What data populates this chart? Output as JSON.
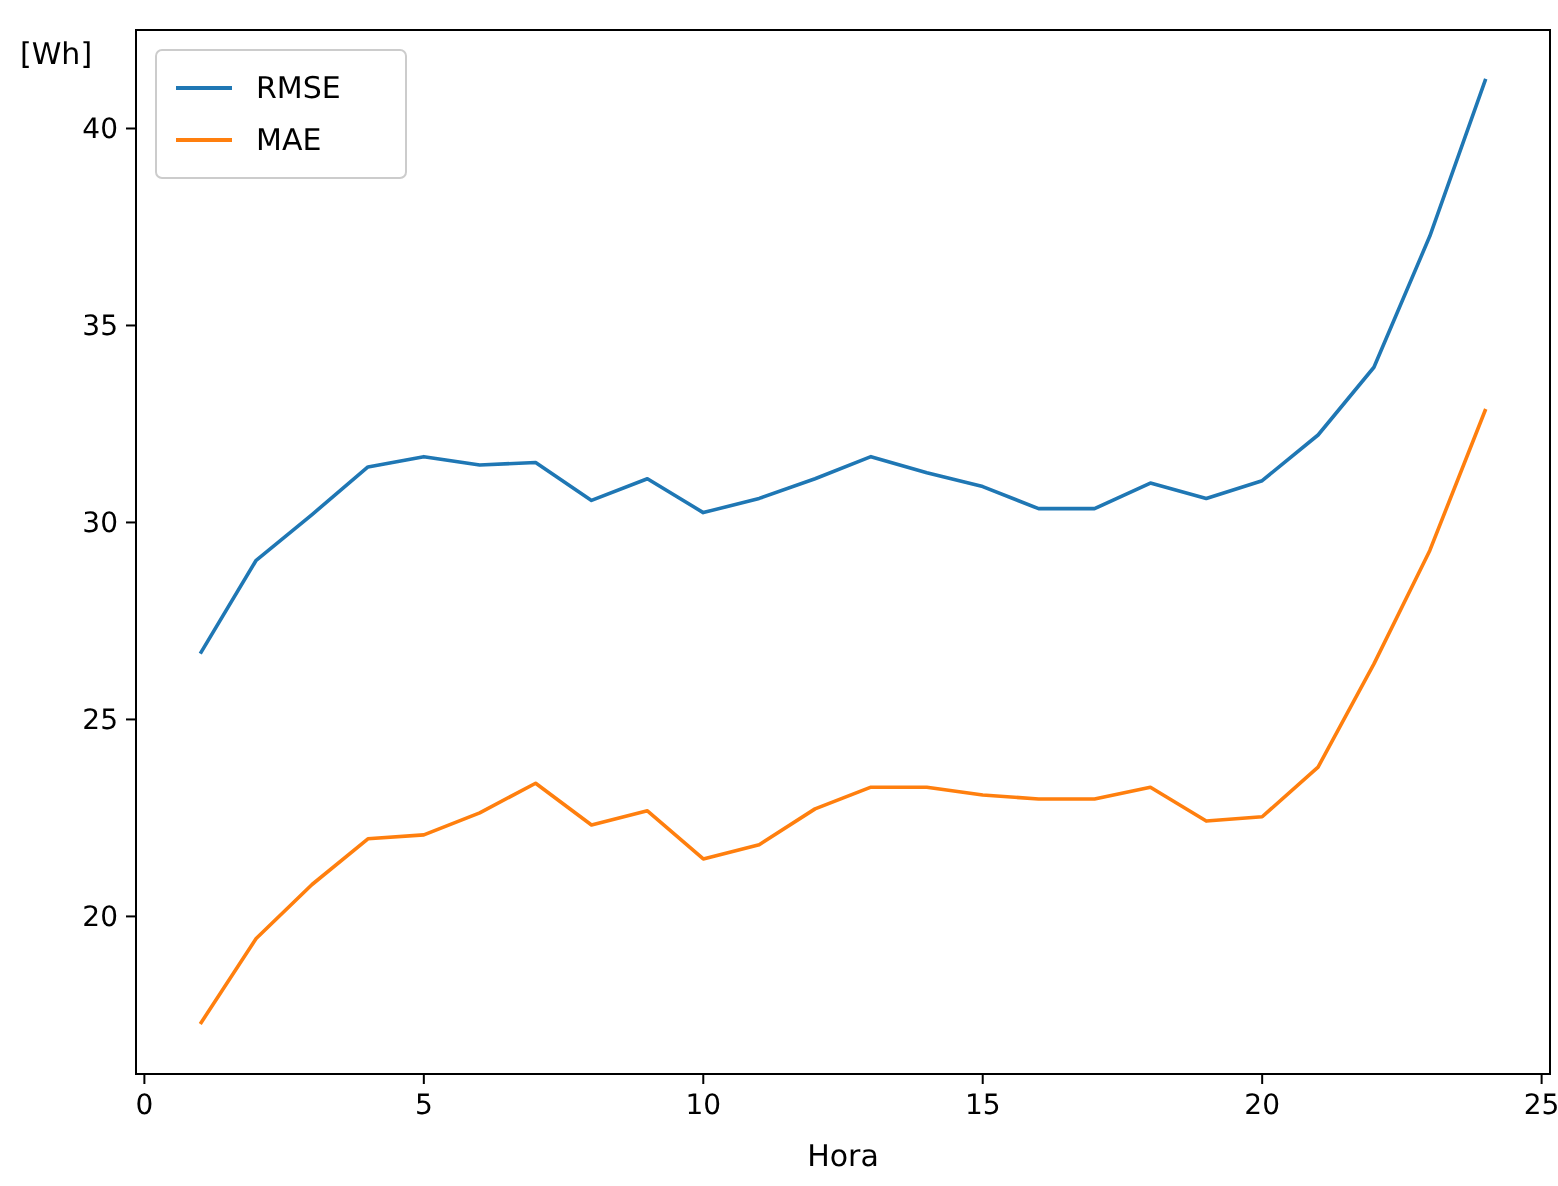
{
  "chart_data": {
    "type": "line",
    "xlabel": "Hora",
    "ylabel": "[Wh]",
    "x": [
      1,
      2,
      3,
      4,
      5,
      6,
      7,
      8,
      9,
      10,
      11,
      12,
      13,
      14,
      15,
      16,
      17,
      18,
      19,
      20,
      21,
      22,
      23,
      24
    ],
    "series": [
      {
        "name": "RMSE",
        "color": "#1f77b4",
        "values": [
          26.67,
          29.04,
          30.2,
          31.41,
          31.67,
          31.46,
          31.52,
          30.56,
          31.11,
          30.25,
          30.61,
          31.11,
          31.67,
          31.26,
          30.91,
          30.35,
          30.35,
          31.0,
          30.61,
          31.06,
          32.22,
          33.94,
          37.27,
          41.26
        ]
      },
      {
        "name": "MAE",
        "color": "#ff7f0e",
        "values": [
          17.27,
          19.44,
          20.81,
          21.97,
          22.07,
          22.63,
          23.38,
          22.32,
          22.68,
          21.46,
          21.82,
          22.73,
          23.28,
          23.28,
          23.08,
          22.98,
          22.98,
          23.28,
          22.42,
          22.53,
          23.79,
          26.41,
          29.29,
          32.88
        ]
      }
    ],
    "xlim": [
      -0.15,
      25.15
    ],
    "xticks": [
      0,
      5,
      10,
      15,
      20,
      25
    ],
    "ylim": [
      16,
      42.5
    ],
    "yticks": [
      20,
      25,
      30,
      35,
      40
    ],
    "legend": "top left",
    "grid": false,
    "marker": "none",
    "line_style": "solid"
  }
}
